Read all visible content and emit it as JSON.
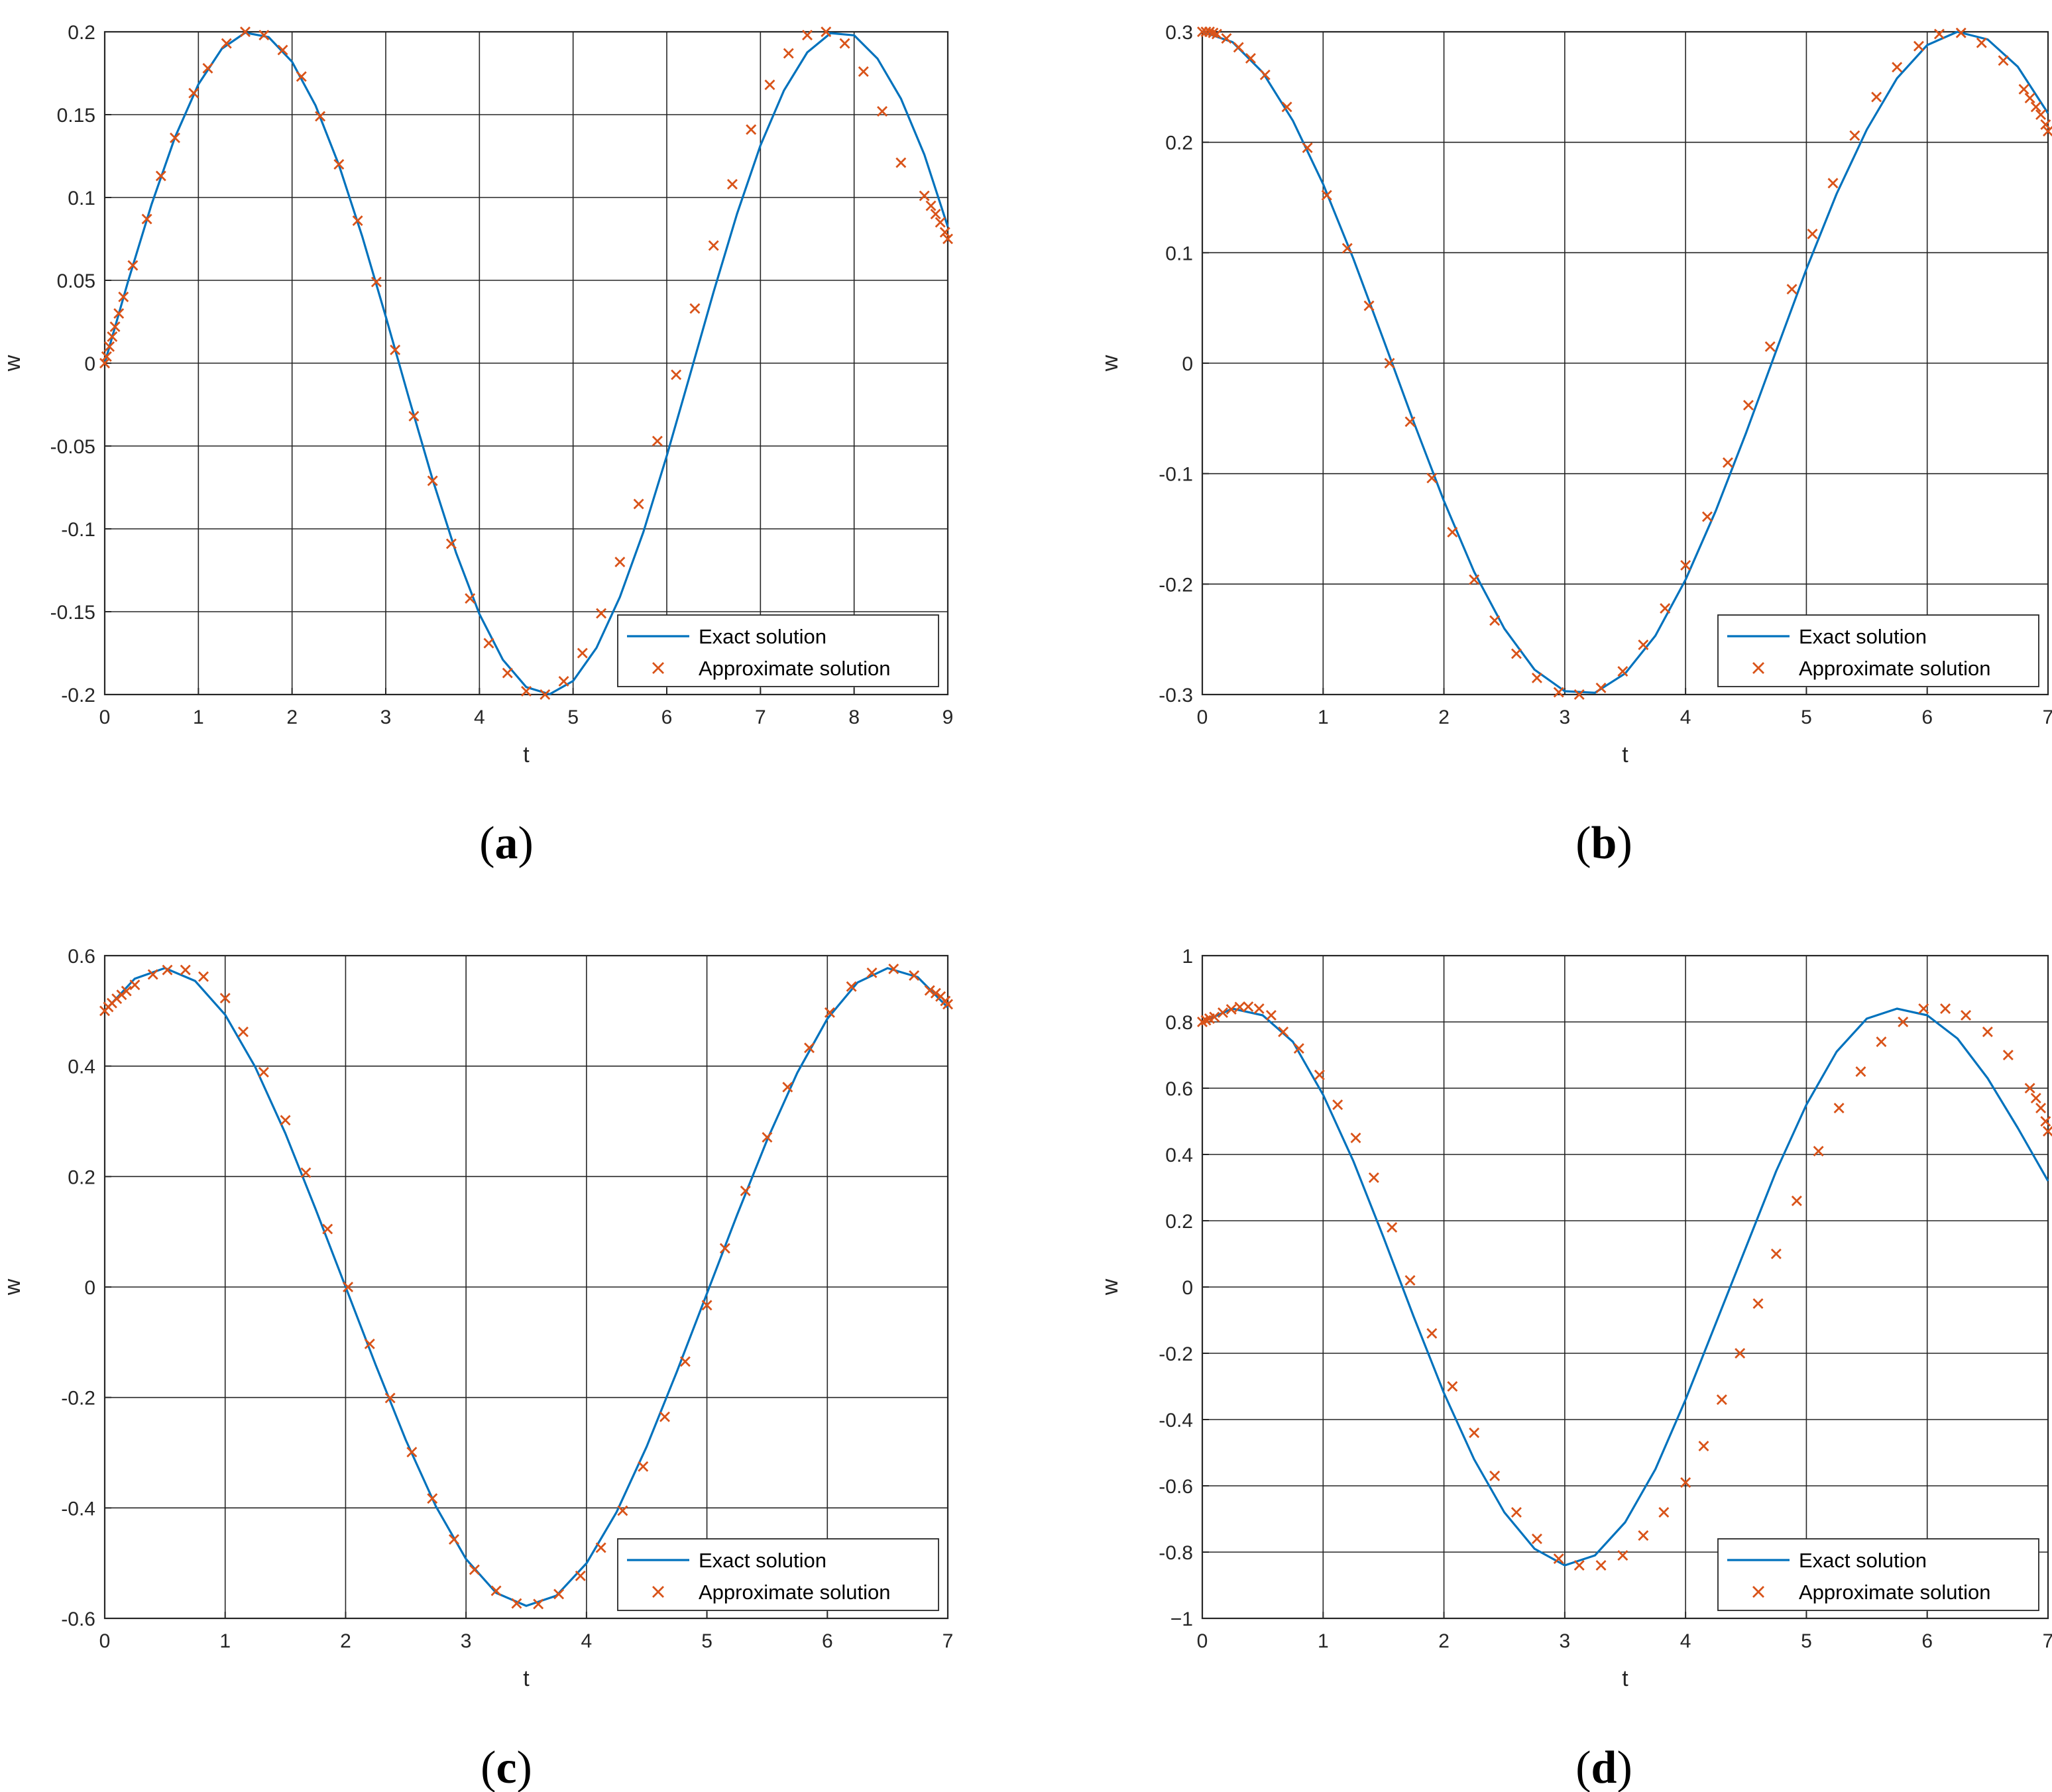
{
  "colors": {
    "exact": "#0072BD",
    "approx": "#D95319",
    "grid": "#262626",
    "axis": "#262626"
  },
  "chart_data": [
    {
      "panel_label": "a",
      "type": "line",
      "xlabel": "t",
      "ylabel": "w",
      "xlim": [
        0,
        9
      ],
      "ylim": [
        -0.2,
        0.2
      ],
      "xticks": [
        0,
        1,
        2,
        3,
        4,
        5,
        6,
        7,
        8,
        9
      ],
      "yticks": [
        -0.2,
        -0.15,
        -0.1,
        -0.05,
        0,
        0.05,
        0.1,
        0.15,
        0.2
      ],
      "ytick_labels": [
        "-0.2",
        "-0.15",
        "-0.1",
        "-0.05",
        "0",
        "0.05",
        "0.1",
        "0.15",
        "0.2"
      ],
      "grid": true,
      "legend_position": "bottom-right",
      "series": [
        {
          "name": "Exact solution",
          "style": "line",
          "x": [
            0,
            0.25,
            0.5,
            0.75,
            1,
            1.25,
            1.5,
            1.75,
            2,
            2.25,
            2.5,
            2.75,
            3,
            3.25,
            3.5,
            3.75,
            4,
            4.25,
            4.5,
            4.75,
            5,
            5.25,
            5.5,
            5.75,
            6,
            6.25,
            6.5,
            6.75,
            7,
            7.25,
            7.5,
            7.75,
            8,
            8.25,
            8.5,
            8.75,
            9
          ],
          "y": [
            0,
            0.0495,
            0.0959,
            0.1363,
            0.1683,
            0.1898,
            0.1995,
            0.1968,
            0.1819,
            0.1556,
            0.1197,
            0.0763,
            0.0282,
            -0.0216,
            -0.0702,
            -0.1143,
            -0.1514,
            -0.179,
            -0.1955,
            -0.1998,
            -0.1918,
            -0.1718,
            -0.1411,
            -0.1019,
            -0.0559,
            -0.0067,
            0.0431,
            0.0901,
            0.1314,
            0.1645,
            0.1876,
            0.1992,
            0.1979,
            0.1838,
            0.1597,
            0.1258,
            0.0824
          ]
        },
        {
          "name": "Approximate solution",
          "style": "marker",
          "x": [
            0,
            0.02,
            0.05,
            0.08,
            0.11,
            0.15,
            0.2,
            0.3,
            0.45,
            0.6,
            0.75,
            0.95,
            1.1,
            1.3,
            1.5,
            1.7,
            1.9,
            2.1,
            2.3,
            2.5,
            2.7,
            2.9,
            3.1,
            3.3,
            3.5,
            3.7,
            3.9,
            4.1,
            4.3,
            4.5,
            4.7,
            4.9,
            5.1,
            5.3,
            5.5,
            5.7,
            5.9,
            6.1,
            6.3,
            6.5,
            6.7,
            6.9,
            7.1,
            7.3,
            7.5,
            7.7,
            7.9,
            8.1,
            8.3,
            8.5,
            8.75,
            8.82,
            8.87,
            8.92,
            8.97,
            9
          ],
          "y": [
            0,
            0.004,
            0.01,
            0.016,
            0.022,
            0.03,
            0.04,
            0.059,
            0.087,
            0.113,
            0.136,
            0.163,
            0.178,
            0.193,
            0.2,
            0.198,
            0.189,
            0.173,
            0.149,
            0.12,
            0.086,
            0.049,
            0.008,
            -0.032,
            -0.071,
            -0.109,
            -0.142,
            -0.169,
            -0.187,
            -0.198,
            -0.2,
            -0.192,
            -0.175,
            -0.151,
            -0.12,
            -0.085,
            -0.047,
            -0.007,
            0.033,
            0.071,
            0.108,
            0.141,
            0.168,
            0.187,
            0.198,
            0.2,
            0.193,
            0.176,
            0.152,
            0.121,
            0.101,
            0.095,
            0.09,
            0.085,
            0.079,
            0.075
          ]
        }
      ]
    },
    {
      "panel_label": "b",
      "type": "line",
      "xlabel": "t",
      "ylabel": "w",
      "xlim": [
        0,
        7
      ],
      "ylim": [
        -0.3,
        0.3
      ],
      "xticks": [
        0,
        1,
        2,
        3,
        4,
        5,
        6,
        7
      ],
      "yticks": [
        -0.3,
        -0.2,
        -0.1,
        0,
        0.1,
        0.2,
        0.3
      ],
      "ytick_labels": [
        "-0.3",
        "-0.2",
        "-0.1",
        "0",
        "0.1",
        "0.2",
        "0.3"
      ],
      "grid": true,
      "legend_position": "bottom-right",
      "series": [
        {
          "name": "Exact solution",
          "style": "line",
          "x": [
            0,
            0.25,
            0.5,
            0.75,
            1,
            1.25,
            1.5,
            1.75,
            2,
            2.25,
            2.5,
            2.75,
            3,
            3.25,
            3.5,
            3.75,
            4,
            4.25,
            4.5,
            4.75,
            5,
            5.25,
            5.5,
            5.75,
            6,
            6.25,
            6.5,
            6.75,
            7
          ],
          "y": [
            0.3,
            0.2907,
            0.2633,
            0.2195,
            0.1621,
            0.0946,
            0.0212,
            -0.0534,
            -0.1248,
            -0.1889,
            -0.2403,
            -0.2775,
            -0.297,
            -0.2984,
            -0.2809,
            -0.2468,
            -0.1961,
            -0.1337,
            -0.0633,
            0.0113,
            0.0851,
            0.1533,
            0.2115,
            0.2579,
            0.288,
            0.3,
            0.2931,
            0.2684,
            0.2262
          ]
        },
        {
          "name": "Approximate solution",
          "style": "marker",
          "x": [
            0,
            0.03,
            0.06,
            0.09,
            0.12,
            0.2,
            0.3,
            0.4,
            0.52,
            0.7,
            0.87,
            1.03,
            1.2,
            1.38,
            1.55,
            1.72,
            1.9,
            2.07,
            2.25,
            2.42,
            2.6,
            2.77,
            2.95,
            3.12,
            3.3,
            3.48,
            3.65,
            3.83,
            4.0,
            4.18,
            4.35,
            4.52,
            4.7,
            4.88,
            5.05,
            5.22,
            5.4,
            5.58,
            5.75,
            5.93,
            6.1,
            6.28,
            6.45,
            6.63,
            6.8,
            6.85,
            6.9,
            6.94,
            6.98,
            7.0
          ],
          "y": [
            0.3,
            0.3,
            0.3,
            0.299,
            0.298,
            0.294,
            0.286,
            0.276,
            0.261,
            0.232,
            0.195,
            0.152,
            0.104,
            0.052,
            0.0,
            -0.053,
            -0.104,
            -0.153,
            -0.196,
            -0.233,
            -0.263,
            -0.285,
            -0.298,
            -0.3,
            -0.294,
            -0.279,
            -0.255,
            -0.222,
            -0.183,
            -0.139,
            -0.09,
            -0.038,
            0.015,
            0.067,
            0.117,
            0.163,
            0.206,
            0.241,
            0.268,
            0.287,
            0.298,
            0.299,
            0.29,
            0.274,
            0.248,
            0.24,
            0.232,
            0.225,
            0.216,
            0.21
          ]
        }
      ]
    },
    {
      "panel_label": "c",
      "type": "line",
      "xlabel": "t",
      "ylabel": "w",
      "xlim": [
        0,
        7
      ],
      "ylim": [
        -0.6,
        0.6
      ],
      "xticks": [
        0,
        1,
        2,
        3,
        4,
        5,
        6,
        7
      ],
      "yticks": [
        -0.6,
        -0.4,
        -0.2,
        0,
        0.2,
        0.4,
        0.6
      ],
      "ytick_labels": [
        "-0.6",
        "-0.4",
        "-0.2",
        "0",
        "0.2",
        "0.4",
        "0.6"
      ],
      "grid": true,
      "legend_position": "bottom-right",
      "series": [
        {
          "name": "Exact solution",
          "style": "line",
          "x": [
            0,
            0.25,
            0.5,
            0.75,
            1,
            1.25,
            1.5,
            1.75,
            2,
            2.25,
            2.5,
            2.75,
            3,
            3.25,
            3.5,
            3.75,
            4,
            4.25,
            4.5,
            4.75,
            5,
            5.25,
            5.5,
            5.75,
            6,
            6.25,
            6.5,
            6.75,
            7
          ],
          "y": [
            0.5,
            0.5584,
            0.5774,
            0.5543,
            0.493,
            0.3983,
            0.2781,
            0.1416,
            0.0004,
            -0.1413,
            -0.2772,
            -0.3973,
            -0.4925,
            -0.5539,
            -0.5773,
            -0.5589,
            -0.5003,
            -0.4075,
            -0.2889,
            -0.1537,
            -0.0118,
            0.1302,
            0.2663,
            0.3879,
            0.4858,
            0.5513,
            0.5773,
            0.5611,
            0.5062
          ]
        },
        {
          "name": "Approximate solution",
          "style": "marker",
          "x": [
            0,
            0.03,
            0.06,
            0.1,
            0.14,
            0.18,
            0.25,
            0.4,
            0.52,
            0.67,
            0.82,
            1.0,
            1.15,
            1.32,
            1.5,
            1.67,
            1.85,
            2.02,
            2.2,
            2.37,
            2.55,
            2.72,
            2.9,
            3.07,
            3.25,
            3.42,
            3.6,
            3.77,
            3.95,
            4.12,
            4.3,
            4.47,
            4.65,
            4.82,
            5.0,
            5.15,
            5.32,
            5.5,
            5.67,
            5.85,
            6.02,
            6.2,
            6.37,
            6.55,
            6.72,
            6.85,
            6.9,
            6.94,
            6.98,
            7.0
          ],
          "y": [
            0.5,
            0.507,
            0.514,
            0.522,
            0.529,
            0.536,
            0.547,
            0.566,
            0.574,
            0.574,
            0.562,
            0.523,
            0.462,
            0.389,
            0.302,
            0.207,
            0.105,
            0.0,
            -0.103,
            -0.201,
            -0.299,
            -0.383,
            -0.457,
            -0.512,
            -0.55,
            -0.573,
            -0.574,
            -0.556,
            -0.523,
            -0.472,
            -0.405,
            -0.325,
            -0.235,
            -0.135,
            -0.033,
            0.07,
            0.174,
            0.271,
            0.362,
            0.433,
            0.497,
            0.544,
            0.569,
            0.576,
            0.564,
            0.537,
            0.532,
            0.526,
            0.518,
            0.512
          ]
        }
      ]
    },
    {
      "panel_label": "d",
      "type": "line",
      "xlabel": "t",
      "ylabel": "w",
      "xlim": [
        0,
        7
      ],
      "ylim": [
        -1,
        1
      ],
      "xticks": [
        0,
        1,
        2,
        3,
        4,
        5,
        6,
        7
      ],
      "yticks": [
        -1,
        -0.8,
        -0.6,
        -0.4,
        -0.2,
        0,
        0.2,
        0.4,
        0.6,
        0.8,
        1
      ],
      "ytick_labels": [
        "−1",
        "-0.8",
        "-0.6",
        "-0.4",
        "-0.2",
        "0",
        "0.2",
        "0.4",
        "0.6",
        "0.8",
        "1"
      ],
      "grid": true,
      "legend_position": "bottom-right",
      "series": [
        {
          "name": "Exact solution",
          "style": "line",
          "x": [
            0,
            0.25,
            0.5,
            0.75,
            1,
            1.25,
            1.5,
            1.75,
            2,
            2.25,
            2.5,
            2.75,
            3,
            3.25,
            3.5,
            3.75,
            4,
            4.25,
            4.5,
            4.75,
            5,
            5.25,
            5.5,
            5.75,
            6,
            6.25,
            6.5,
            6.75,
            7
          ],
          "y": [
            0.8,
            0.84,
            0.82,
            0.74,
            0.58,
            0.38,
            0.15,
            -0.09,
            -0.32,
            -0.52,
            -0.68,
            -0.79,
            -0.84,
            -0.81,
            -0.71,
            -0.55,
            -0.34,
            -0.11,
            0.12,
            0.35,
            0.55,
            0.71,
            0.81,
            0.84,
            0.82,
            0.75,
            0.63,
            0.48,
            0.32
          ]
        },
        {
          "name": "Approximate solution",
          "style": "marker",
          "x": [
            0,
            0.03,
            0.06,
            0.1,
            0.17,
            0.24,
            0.31,
            0.38,
            0.47,
            0.57,
            0.67,
            0.8,
            0.97,
            1.12,
            1.27,
            1.42,
            1.57,
            1.72,
            1.9,
            2.07,
            2.25,
            2.42,
            2.6,
            2.77,
            2.95,
            3.12,
            3.3,
            3.48,
            3.65,
            3.82,
            4.0,
            4.15,
            4.3,
            4.45,
            4.6,
            4.75,
            4.92,
            5.1,
            5.27,
            5.45,
            5.62,
            5.8,
            5.97,
            6.15,
            6.32,
            6.5,
            6.67,
            6.85,
            6.9,
            6.94,
            6.98,
            7.0
          ],
          "y": [
            0.8,
            0.805,
            0.81,
            0.815,
            0.828,
            0.838,
            0.845,
            0.846,
            0.84,
            0.82,
            0.77,
            0.72,
            0.64,
            0.55,
            0.45,
            0.33,
            0.18,
            0.02,
            -0.14,
            -0.3,
            -0.44,
            -0.57,
            -0.68,
            -0.76,
            -0.82,
            -0.84,
            -0.84,
            -0.81,
            -0.75,
            -0.68,
            -0.59,
            -0.48,
            -0.34,
            -0.2,
            -0.05,
            0.1,
            0.26,
            0.41,
            0.54,
            0.65,
            0.74,
            0.8,
            0.84,
            0.84,
            0.82,
            0.77,
            0.7,
            0.6,
            0.57,
            0.54,
            0.5,
            0.47
          ]
        }
      ]
    }
  ]
}
